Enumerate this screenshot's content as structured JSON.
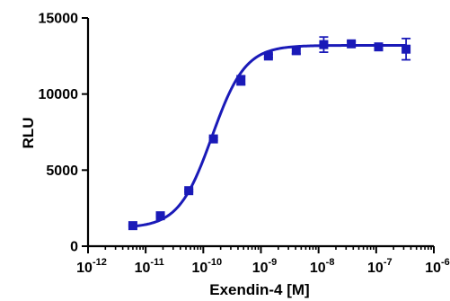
{
  "chart_data": {
    "type": "scatter",
    "title": "",
    "xlabel": "Exendin-4 [M]",
    "ylabel": "RLU",
    "x_scale": "log",
    "xlim": [
      1e-12,
      1e-06
    ],
    "ylim": [
      0,
      15000
    ],
    "grid": false,
    "x_ticks": [
      {
        "base": "10",
        "exp": "-12",
        "value": 1e-12
      },
      {
        "base": "10",
        "exp": "-11",
        "value": 1e-11
      },
      {
        "base": "10",
        "exp": "-10",
        "value": 1e-10
      },
      {
        "base": "10",
        "exp": "-9",
        "value": 1e-09
      },
      {
        "base": "10",
        "exp": "-8",
        "value": 1e-08
      },
      {
        "base": "10",
        "exp": "-7",
        "value": 1e-07
      },
      {
        "base": "10",
        "exp": "-6",
        "value": 1e-06
      }
    ],
    "y_ticks": [
      "0",
      "5000",
      "10000",
      "15000"
    ],
    "series": [
      {
        "color": "#1a1ab8",
        "marker": "square",
        "points": [
          {
            "x": 6e-12,
            "y": 1350,
            "err": 60
          },
          {
            "x": 1.8e-11,
            "y": 2000,
            "err": 60
          },
          {
            "x": 5.6e-11,
            "y": 3650,
            "err": 80
          },
          {
            "x": 1.5e-10,
            "y": 7050,
            "err": 100
          },
          {
            "x": 4.5e-10,
            "y": 10900,
            "err": 300
          },
          {
            "x": 1.35e-09,
            "y": 12500,
            "err": 100
          },
          {
            "x": 4.1e-09,
            "y": 12850,
            "err": 200
          },
          {
            "x": 1.23e-08,
            "y": 13250,
            "err": 500
          },
          {
            "x": 3.7e-08,
            "y": 13300,
            "err": 150
          },
          {
            "x": 1.1e-07,
            "y": 13100,
            "err": 200
          },
          {
            "x": 3.3e-07,
            "y": 12950,
            "err": 700
          }
        ],
        "fit": {
          "bottom": 1200,
          "top": 13200,
          "logEC50": -9.85,
          "hill": 1.5
        }
      }
    ]
  }
}
